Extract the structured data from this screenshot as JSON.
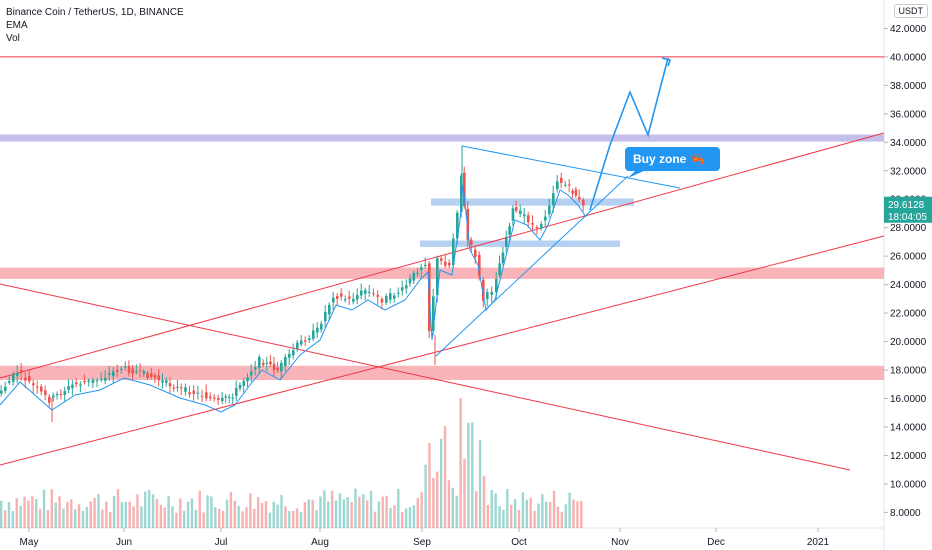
{
  "header": {
    "title": "Binance Coin / TetherUS, 1D, BINANCE",
    "indicator1": "EMA",
    "indicator2": "Vol"
  },
  "currency": "USDT",
  "annotation": {
    "text": "Buy zone 🦐"
  },
  "price_badge": {
    "price": "29.6128",
    "timer": "18:04:05"
  },
  "chart_data": {
    "type": "candlestick",
    "title": "Binance Coin / TetherUS, 1D, BINANCE",
    "x_labels": [
      "May",
      "Jun",
      "Jul",
      "Aug",
      "Sep",
      "Oct",
      "Nov",
      "Dec",
      "2021"
    ],
    "y_ticks": [
      "8.0000",
      "10.0000",
      "12.0000",
      "14.0000",
      "16.0000",
      "18.0000",
      "20.0000",
      "22.0000",
      "24.0000",
      "26.0000",
      "28.0000",
      "30.0000",
      "32.0000",
      "34.0000",
      "36.0000",
      "38.0000",
      "40.0000",
      "42.0000"
    ],
    "ylim": [
      6.9,
      44
    ],
    "last_price": 29.6128,
    "colors": {
      "up": "#26a69a",
      "down": "#ef5350",
      "ema": "#2196f3",
      "lines": "#f23645",
      "zone_red": "#f7a7ad",
      "zone_purple": "#b9b3e6",
      "zone_blue": "#a9c8ee"
    },
    "key_points": [
      {
        "date": "May start",
        "price": 17.3
      },
      {
        "date": "May mid",
        "price": 15.8
      },
      {
        "date": "Jun start",
        "price": 17.8
      },
      {
        "date": "Jul start",
        "price": 15.5
      },
      {
        "date": "Jul mid",
        "price": 18.5
      },
      {
        "date": "Aug start",
        "price": 22.0
      },
      {
        "date": "Aug mid",
        "price": 23.5
      },
      {
        "date": "Aug end",
        "price": 25.2
      },
      {
        "date": "Sep 5",
        "price": 21.0
      },
      {
        "date": "Sep 15 high",
        "price": 33.5
      },
      {
        "date": "Sep 25 low",
        "price": 22.5
      },
      {
        "date": "Oct 15",
        "price": 31.5
      },
      {
        "date": "Oct 21",
        "price": 29.6
      }
    ],
    "horizontal_levels": [
      40.0,
      34.2,
      25.0,
      17.8
    ],
    "zones": [
      {
        "color": "purple",
        "price": 34.3
      },
      {
        "color": "red",
        "low": 24.4,
        "high": 25.2
      },
      {
        "color": "red",
        "low": 17.3,
        "high": 18.3
      },
      {
        "color": "blue",
        "price": 29.8
      },
      {
        "color": "blue",
        "price": 26.9
      }
    ]
  }
}
